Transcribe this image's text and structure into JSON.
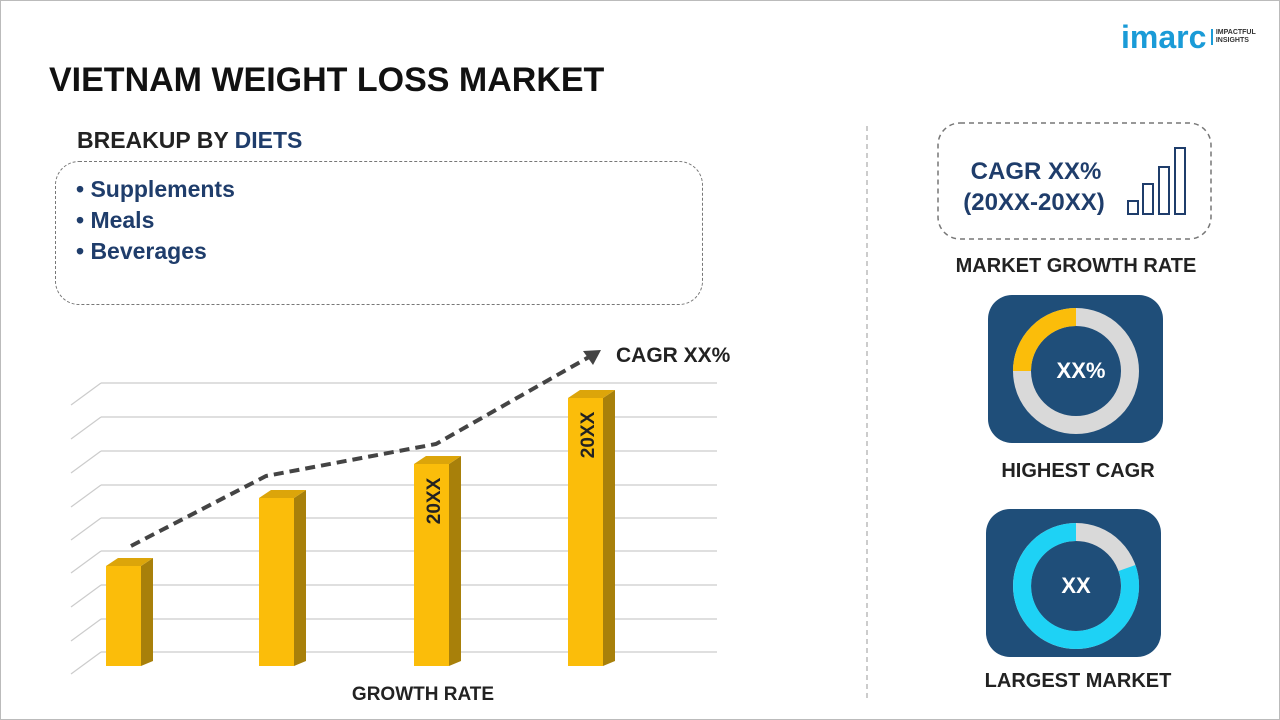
{
  "header": {
    "title": "VIETNAM WEIGHT LOSS MARKET"
  },
  "logo": {
    "brand": "imarc",
    "tagline": [
      "IMPACTFUL",
      "INSIGHTS"
    ]
  },
  "breakup": {
    "label": "BREAKUP BY",
    "highlight": "DIETS",
    "items": [
      "• Supplements",
      "• Meals",
      "• Beverages"
    ]
  },
  "growth_chart": {
    "cagr_label": "CAGR XX%",
    "bar_labels": [
      "20XX",
      "20XX"
    ],
    "axis_label": "GROWTH RATE"
  },
  "growth_box": {
    "lines": [
      "CAGR XX%",
      "(20XX-20XX)"
    ],
    "caption": "MARKET GROWTH RATE"
  },
  "highest": {
    "value": "XX%",
    "caption": "HIGHEST CAGR"
  },
  "largest": {
    "value": "XX",
    "caption": "LARGEST MARKET"
  }
}
